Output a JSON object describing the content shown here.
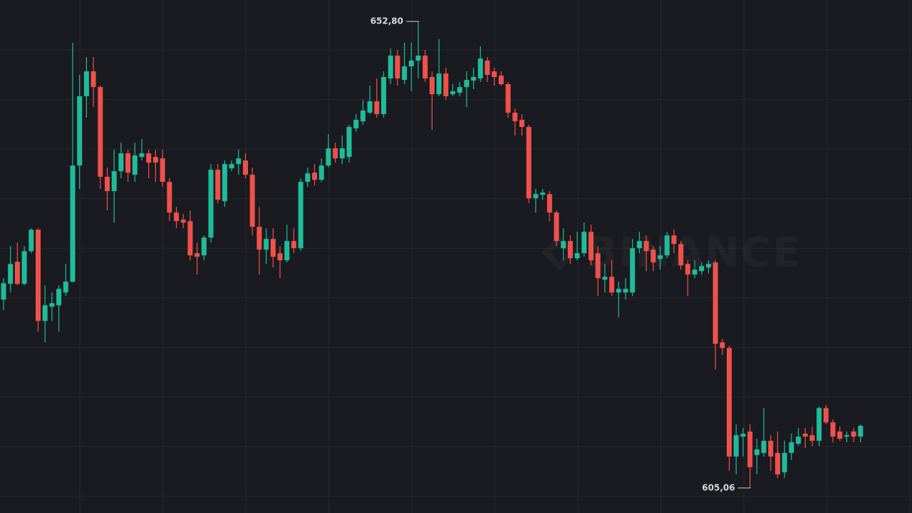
{
  "chart_data": {
    "type": "candlestick",
    "up_color": "#1fbc9c",
    "down_color": "#f0514b",
    "grid": true,
    "watermark": "BINANCE",
    "ylim": [
      602.5,
      655.0
    ],
    "annotations": [
      {
        "text": "652,80"
      },
      {
        "text": "605,06"
      }
    ],
    "open": [
      624.34,
      625.95,
      628.21,
      625.95,
      629.3,
      631.49,
      622.15,
      623.61,
      623.76,
      625.07,
      626.17,
      638.06,
      645.15,
      647.7,
      646.09,
      636.9,
      635.44,
      637.48,
      639.31,
      637.12,
      638.94,
      639.31,
      638.94,
      638.79,
      636.39,
      633.25,
      632.52,
      632.37,
      629.09,
      628.87,
      630.69,
      637.63,
      634.41,
      637.77,
      638.21,
      638.58,
      637.12,
      631.79,
      629.45,
      630.55,
      629.09,
      628.36,
      630.33,
      629.6,
      636.39,
      637.33,
      636.6,
      638.06,
      639.82,
      638.79,
      638.94,
      641.86,
      642.59,
      643.47,
      644.63,
      643.32,
      646.97,
      649.31,
      646.82,
      648.21,
      648.8,
      649.31,
      647.12,
      645.36,
      647.48,
      645.36,
      645.51,
      646.09,
      646.75,
      646.97,
      648.8,
      647.7,
      647.26,
      646.39,
      643.47,
      642.74,
      642.01,
      634.71,
      635.07,
      635.14,
      633.25,
      629.6,
      630.33,
      628.57,
      629.09,
      631.28,
      629.09,
      626.38,
      626.68,
      625.07,
      625.07,
      625.07,
      629.6,
      630.33,
      629.45,
      628.5,
      628.87,
      630.91,
      630.03,
      627.99,
      626.9,
      627.26,
      627.63,
      628.14,
      619.96,
      619.38,
      608.28,
      610.32,
      610.84,
      608.43,
      608.65,
      609.89,
      608.65,
      606.67,
      608.65,
      609.59,
      610.62,
      610.47,
      609.89,
      613.24,
      611.78,
      610.84,
      610.32,
      610.84,
      610.32
    ],
    "high": [
      626.53,
      629.82,
      630.18,
      629.82,
      631.64,
      631.64,
      625.8,
      625.07,
      625.8,
      627.99,
      650.62,
      647.34,
      649.16,
      649.16,
      646.24,
      637.85,
      639.67,
      640.4,
      639.67,
      640.4,
      640.77,
      639.67,
      639.67,
      639.67,
      636.75,
      633.83,
      633.1,
      633.47,
      630.18,
      630.91,
      638.21,
      638.21,
      638.58,
      638.58,
      639.67,
      639.31,
      637.85,
      633.83,
      631.64,
      631.64,
      629.82,
      632.01,
      631.64,
      636.75,
      637.85,
      638.21,
      638.79,
      641.28,
      640.4,
      641.13,
      642.23,
      643.32,
      644.78,
      646.24,
      646.97,
      647.7,
      650.04,
      649.89,
      650.62,
      650.62,
      652.8,
      649.89,
      647.7,
      650.99,
      648.07,
      646.39,
      646.61,
      647.7,
      648.07,
      650.26,
      649.16,
      648.07,
      647.7,
      646.61,
      643.9,
      643.32,
      642.23,
      635.66,
      635.66,
      635.44,
      633.47,
      631.64,
      630.91,
      631.28,
      632.22,
      632.01,
      629.82,
      627.99,
      628.36,
      626.17,
      626.53,
      630.55,
      631.28,
      630.91,
      629.82,
      629.82,
      631.28,
      631.49,
      630.33,
      628.36,
      628.36,
      628.14,
      628.36,
      628.36,
      620.33,
      619.6,
      611.57,
      611.2,
      611.57,
      610.1,
      613.24,
      610.47,
      610.84,
      609.89,
      610.62,
      611.2,
      611.2,
      611.35,
      613.39,
      613.54,
      612.08,
      611.35,
      610.84,
      611.2,
      611.57
    ],
    "low": [
      623.25,
      625.07,
      625.8,
      625.8,
      629.09,
      621.06,
      619.96,
      622.15,
      621.06,
      624.71,
      626.1,
      635.66,
      642.96,
      644.05,
      635.66,
      633.47,
      632.22,
      636.75,
      636.39,
      636.39,
      638.58,
      636.75,
      636.39,
      635.87,
      632.37,
      631.64,
      631.64,
      628.36,
      626.9,
      628.36,
      630.18,
      634.2,
      633.83,
      637.48,
      637.12,
      636.75,
      630.91,
      626.9,
      627.99,
      627.63,
      626.53,
      628.14,
      629.09,
      629.3,
      635.87,
      636.02,
      636.39,
      637.85,
      638.36,
      638.21,
      638.36,
      641.5,
      642.23,
      643.32,
      642.96,
      642.96,
      646.39,
      646.24,
      646.39,
      645.66,
      646.97,
      646.61,
      641.71,
      645.15,
      644.78,
      645.15,
      645.15,
      644.05,
      645.88,
      646.61,
      646.61,
      646.24,
      646.24,
      642.96,
      641.13,
      641.13,
      634.2,
      633.25,
      634.56,
      632.37,
      629.82,
      628.36,
      627.99,
      628.36,
      628.72,
      627.84,
      624.71,
      625.07,
      624.71,
      622.52,
      624.34,
      624.71,
      629.09,
      627.26,
      627.26,
      627.41,
      628.57,
      629.09,
      627.41,
      624.71,
      626.53,
      626.9,
      627.04,
      617.19,
      618.65,
      606.82,
      606.46,
      608.28,
      605.06,
      606.46,
      608.28,
      606.82,
      606.09,
      606.09,
      607.92,
      609.38,
      609.16,
      609.38,
      609.38,
      611.57,
      609.74,
      609.89,
      609.74,
      609.74,
      609.74
    ],
    "close": [
      626.02,
      627.99,
      625.95,
      629.3,
      631.49,
      622.15,
      623.76,
      623.98,
      625.44,
      626.17,
      638.06,
      645.15,
      647.7,
      646.09,
      636.9,
      635.44,
      637.48,
      639.31,
      637.33,
      639.09,
      639.31,
      638.36,
      638.36,
      636.39,
      633.25,
      632.37,
      632.22,
      628.87,
      628.72,
      630.69,
      637.63,
      634.56,
      638.21,
      638.21,
      638.79,
      637.12,
      631.79,
      629.45,
      630.55,
      628.72,
      628.36,
      630.33,
      629.6,
      636.39,
      637.26,
      636.6,
      638.06,
      639.82,
      638.79,
      639.82,
      642.01,
      642.74,
      643.69,
      644.63,
      643.32,
      647.12,
      649.31,
      646.97,
      648.21,
      648.8,
      649.31,
      646.97,
      645.36,
      647.48,
      645.15,
      645.66,
      646.09,
      646.82,
      647.12,
      649.01,
      647.34,
      647.12,
      646.39,
      643.47,
      642.59,
      642.01,
      634.71,
      635.14,
      635.29,
      633.25,
      630.33,
      630.33,
      628.57,
      629.09,
      631.28,
      628.36,
      626.53,
      626.68,
      625.07,
      625.44,
      625.44,
      629.6,
      630.33,
      629.3,
      628.14,
      628.87,
      630.91,
      630.03,
      627.84,
      626.9,
      627.41,
      627.77,
      627.99,
      619.81,
      619.38,
      608.28,
      610.47,
      610.62,
      607.19,
      609.01,
      609.89,
      608.28,
      606.46,
      608.65,
      609.74,
      610.32,
      610.32,
      609.89,
      613.24,
      611.78,
      610.32,
      610.1,
      610.47,
      610.32,
      611.42
    ]
  }
}
